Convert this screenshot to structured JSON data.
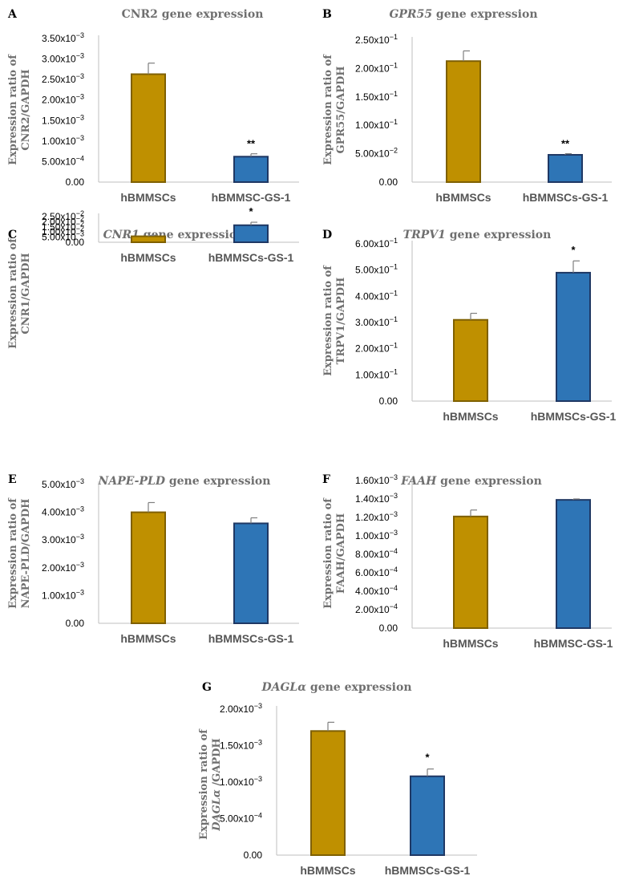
{
  "colors": {
    "gold_fill": "#bf9000",
    "gold_edge": "#7f6000",
    "blue_fill": "#2e75b6",
    "blue_edge": "#1f3864",
    "axis": "#bfbfbf",
    "errorbar": "#7f7f7f"
  },
  "chart_data": [
    {
      "type": "bar",
      "panel": "A",
      "title_pre": "CNR2",
      "title_italic": "",
      "title_post": " gene expression",
      "ylabel_lines": [
        "Expression ratio of",
        "CNR2/GAPDH"
      ],
      "categories": [
        "hBMMSCs",
        "hBMMSC-GS-1"
      ],
      "values": [
        0.00263,
        0.00062
      ],
      "errors": [
        0.00027,
        7e-05
      ],
      "significance": [
        "",
        "**"
      ],
      "yticks": [
        {
          "v": 0,
          "m": "0.00",
          "e": ""
        },
        {
          "v": 0.0005,
          "m": "5.00x10",
          "e": "−4"
        },
        {
          "v": 0.001,
          "m": "1.00x10",
          "e": "−3"
        },
        {
          "v": 0.0015,
          "m": "1.50x10",
          "e": "−3"
        },
        {
          "v": 0.002,
          "m": "2.00x10",
          "e": "−3"
        },
        {
          "v": 0.0025,
          "m": "2.50x10",
          "e": "−3"
        },
        {
          "v": 0.003,
          "m": "3.00x10",
          "e": "−3"
        },
        {
          "v": 0.0035,
          "m": "3.50x10",
          "e": "−3"
        }
      ],
      "ylim": [
        0,
        0.0035
      ]
    },
    {
      "type": "bar",
      "panel": "B",
      "title_pre": "",
      "title_italic": "GPR55",
      "title_post": " gene expression",
      "ylabel_lines": [
        "Expression ratio of",
        "GPR55/GAPDH"
      ],
      "categories": [
        "hBMMSCs",
        "hBMMSCs-GS-1"
      ],
      "values": [
        0.213,
        0.048
      ],
      "errors": [
        0.018,
        0.002
      ],
      "significance": [
        "",
        "**"
      ],
      "yticks": [
        {
          "v": 0,
          "m": "0.00",
          "e": ""
        },
        {
          "v": 0.05,
          "m": "5.00x10",
          "e": "−2"
        },
        {
          "v": 0.1,
          "m": "1.00x10",
          "e": "−1"
        },
        {
          "v": 0.15,
          "m": "1.50x10",
          "e": "−1"
        },
        {
          "v": 0.2,
          "m": "2.00x10",
          "e": "−1"
        },
        {
          "v": 0.25,
          "m": "2.50x10",
          "e": "−1"
        }
      ],
      "ylim": [
        0,
        0.25
      ]
    },
    {
      "type": "bar",
      "panel": "C",
      "title_pre": "",
      "title_italic": "CNR1",
      "title_post": " gene expression",
      "ylabel_lines": [
        "Expression ratio of",
        "CNR1/GAPDH"
      ],
      "categories": [
        "hBMMSCs",
        "hBMMSCs-GS-1"
      ],
      "values": [
        0.0058,
        0.0166
      ],
      "errors": [
        0.0008,
        0.0029
      ],
      "significance": [
        "",
        "*"
      ],
      "yticks": [
        {
          "v": 0,
          "m": "0.00",
          "e": ""
        },
        {
          "v": 0.005,
          "m": "5.00x10",
          "e": "−3"
        },
        {
          "v": 0.01,
          "m": "1.00x10",
          "e": "−2"
        },
        {
          "v": 0.015,
          "m": "1.50x10",
          "e": "−2"
        },
        {
          "v": 0.02,
          "m": "2.00x10",
          "e": "−2"
        },
        {
          "v": 0.025,
          "m": "2.50x10",
          "e": "−2"
        }
      ],
      "ylim": [
        0,
        0.025
      ]
    },
    {
      "type": "bar",
      "panel": "D",
      "title_pre": "",
      "title_italic": "TRPV1",
      "title_post": " gene expression",
      "ylabel_lines": [
        "Expression ratio of",
        "TRPV1/GAPDH"
      ],
      "categories": [
        "hBMMSCs",
        "hBMMSCs-GS-1"
      ],
      "values": [
        0.31,
        0.49
      ],
      "errors": [
        0.025,
        0.045
      ],
      "significance": [
        "",
        "*"
      ],
      "yticks": [
        {
          "v": 0,
          "m": "0.00",
          "e": ""
        },
        {
          "v": 0.1,
          "m": "1.00x10",
          "e": "−1"
        },
        {
          "v": 0.2,
          "m": "2.00x10",
          "e": "−1"
        },
        {
          "v": 0.3,
          "m": "3.00x10",
          "e": "−1"
        },
        {
          "v": 0.4,
          "m": "4.00x10",
          "e": "−1"
        },
        {
          "v": 0.5,
          "m": "5.00x10",
          "e": "−1"
        },
        {
          "v": 0.6,
          "m": "6.00x10",
          "e": "−1"
        }
      ],
      "ylim": [
        0,
        0.6
      ]
    },
    {
      "type": "bar",
      "panel": "E",
      "title_pre": "",
      "title_italic": "NAPE-PLD",
      "title_post": " gene expression",
      "ylabel_lines": [
        "Expression ratio of",
        "NAPE-PLD/GAPDH"
      ],
      "categories": [
        "hBMMSCs",
        "hBMMSCs-GS-1"
      ],
      "values": [
        0.004,
        0.0036
      ],
      "errors": [
        0.00035,
        0.0002
      ],
      "significance": [
        "",
        ""
      ],
      "yticks": [
        {
          "v": 0,
          "m": "0.00",
          "e": ""
        },
        {
          "v": 0.001,
          "m": "1.00x10",
          "e": "−3"
        },
        {
          "v": 0.002,
          "m": "2.00x10",
          "e": "−3"
        },
        {
          "v": 0.003,
          "m": "3.00x10",
          "e": "−3"
        },
        {
          "v": 0.004,
          "m": "4.00x10",
          "e": "−3"
        },
        {
          "v": 0.005,
          "m": "5.00x10",
          "e": "−3"
        }
      ],
      "ylim": [
        0,
        0.005
      ]
    },
    {
      "type": "bar",
      "panel": "F",
      "title_pre": "",
      "title_italic": "FAAH",
      "title_post": " gene expression",
      "ylabel_lines": [
        "Expression ratio of",
        "FAAH/GAPDH"
      ],
      "categories": [
        "hBMMSCs",
        "hBMMSC-GS-1"
      ],
      "values": [
        0.00121,
        0.00139
      ],
      "errors": [
        7e-05,
        1e-05
      ],
      "significance": [
        "",
        ""
      ],
      "yticks": [
        {
          "v": 0,
          "m": "0.00",
          "e": ""
        },
        {
          "v": 0.0002,
          "m": "2.00x10",
          "e": "−4"
        },
        {
          "v": 0.0004,
          "m": "4.00x10",
          "e": "−4"
        },
        {
          "v": 0.0006,
          "m": "6.00x10",
          "e": "−4"
        },
        {
          "v": 0.0008,
          "m": "8.00x10",
          "e": "−4"
        },
        {
          "v": 0.001,
          "m": "1.00x10",
          "e": "−3"
        },
        {
          "v": 0.0012,
          "m": "1.20x10",
          "e": "−3"
        },
        {
          "v": 0.0014,
          "m": "1.40x10",
          "e": "−3"
        },
        {
          "v": 0.0016,
          "m": "1.60x10",
          "e": "−3"
        }
      ],
      "ylim": [
        0,
        0.0016
      ]
    },
    {
      "type": "bar",
      "panel": "G",
      "title_pre": "",
      "title_italic": "DAGLα",
      "title_post": " gene expression",
      "ylabel_lines": [
        "Expression ratio of",
        "DAGLα /GAPDH"
      ],
      "categories": [
        "hBMMSCs",
        "hBMMSCs-GS-1"
      ],
      "values": [
        0.0017,
        0.00108
      ],
      "errors": [
        0.00012,
        0.0001
      ],
      "significance": [
        "",
        "*"
      ],
      "yticks": [
        {
          "v": 0,
          "m": "0.00",
          "e": ""
        },
        {
          "v": 0.0005,
          "m": "5.00x10",
          "e": "−4"
        },
        {
          "v": 0.001,
          "m": "1.00x10",
          "e": "−3"
        },
        {
          "v": 0.0015,
          "m": "1.50x10",
          "e": "−3"
        },
        {
          "v": 0.002,
          "m": "2.00x10",
          "e": "−3"
        }
      ],
      "ylim": [
        0,
        0.002
      ]
    }
  ]
}
